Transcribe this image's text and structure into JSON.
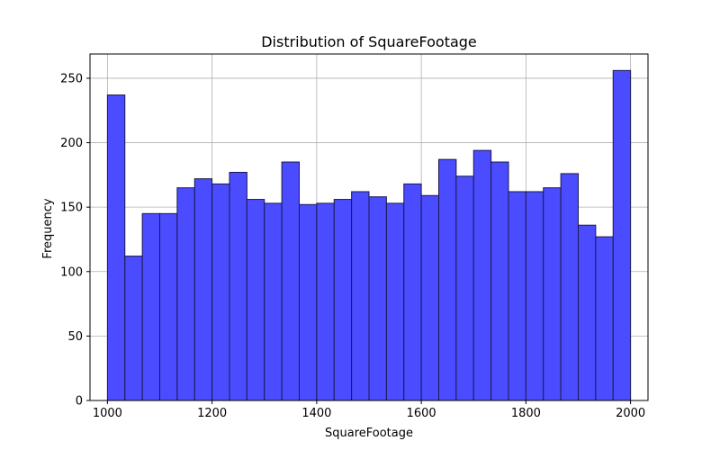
{
  "chart_data": {
    "type": "bar",
    "title": "Distribution of SquareFootage",
    "xlabel": "SquareFootage",
    "ylabel": "Frequency",
    "xlim": [
      966.67,
      2033.33
    ],
    "ylim": [
      0,
      268.8
    ],
    "bin_start": 1000,
    "bin_end": 2000,
    "bin_count": 30,
    "values": [
      237,
      112,
      145,
      145,
      165,
      172,
      168,
      177,
      156,
      153,
      185,
      152,
      153,
      156,
      162,
      158,
      153,
      168,
      159,
      187,
      174,
      194,
      185,
      162,
      162,
      165,
      176,
      136,
      127,
      256
    ],
    "xticks": [
      1000,
      1200,
      1400,
      1600,
      1800,
      2000
    ],
    "yticks": [
      0,
      50,
      100,
      150,
      200,
      250
    ],
    "grid": true,
    "colors": {
      "bar_fill": "#4b4bff",
      "bar_edge": "#1a1a4d",
      "grid": "#b0b0b0"
    }
  }
}
